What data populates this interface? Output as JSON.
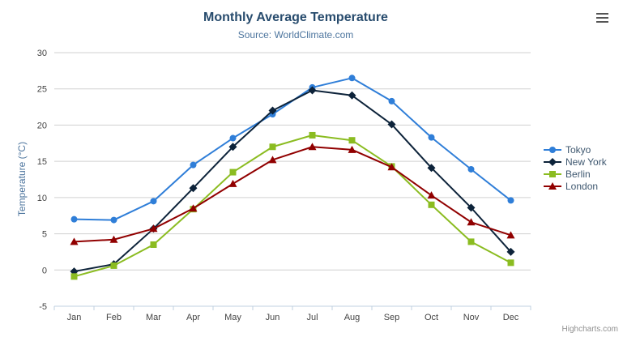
{
  "chart_data": {
    "type": "line",
    "title": "Monthly Average Temperature",
    "subtitle": "Source: WorldClimate.com",
    "categories": [
      "Jan",
      "Feb",
      "Mar",
      "Apr",
      "May",
      "Jun",
      "Jul",
      "Aug",
      "Sep",
      "Oct",
      "Nov",
      "Dec"
    ],
    "xlabel": "",
    "ylabel": "Temperature (°C)",
    "ylim": [
      -5,
      30
    ],
    "yticks": [
      -5,
      0,
      5,
      10,
      15,
      20,
      25,
      30
    ],
    "grid": true,
    "legend_position": "right-middle",
    "colors": {
      "grid": "#d0d0d0",
      "axis_line": "#c0d0e0",
      "axis_label": "#444444",
      "title": "#274b6d",
      "subtitle": "#4d759e",
      "legend_text": "#3e576f",
      "credits": "#909090"
    },
    "series": [
      {
        "name": "Tokyo",
        "color": "#2f7ed8",
        "marker": "circle",
        "values": [
          7.0,
          6.9,
          9.5,
          14.5,
          18.2,
          21.5,
          25.2,
          26.5,
          23.3,
          18.3,
          13.9,
          9.6
        ]
      },
      {
        "name": "New York",
        "color": "#0d233a",
        "marker": "diamond",
        "values": [
          -0.2,
          0.8,
          5.7,
          11.3,
          17.0,
          22.0,
          24.8,
          24.1,
          20.1,
          14.1,
          8.6,
          2.5
        ]
      },
      {
        "name": "Berlin",
        "color": "#8bbc21",
        "marker": "square",
        "values": [
          -0.9,
          0.6,
          3.5,
          8.4,
          13.5,
          17.0,
          18.6,
          17.9,
          14.3,
          9.0,
          3.9,
          1.0
        ]
      },
      {
        "name": "London",
        "color": "#910000",
        "marker": "triangle",
        "values": [
          3.9,
          4.2,
          5.7,
          8.5,
          11.9,
          15.2,
          17.0,
          16.6,
          14.2,
          10.3,
          6.6,
          4.8
        ]
      }
    ]
  },
  "legend": {
    "items": [
      "Tokyo",
      "New York",
      "Berlin",
      "London"
    ]
  },
  "credits": "Highcharts.com",
  "export_menu": {
    "icon": "hamburger-icon"
  }
}
